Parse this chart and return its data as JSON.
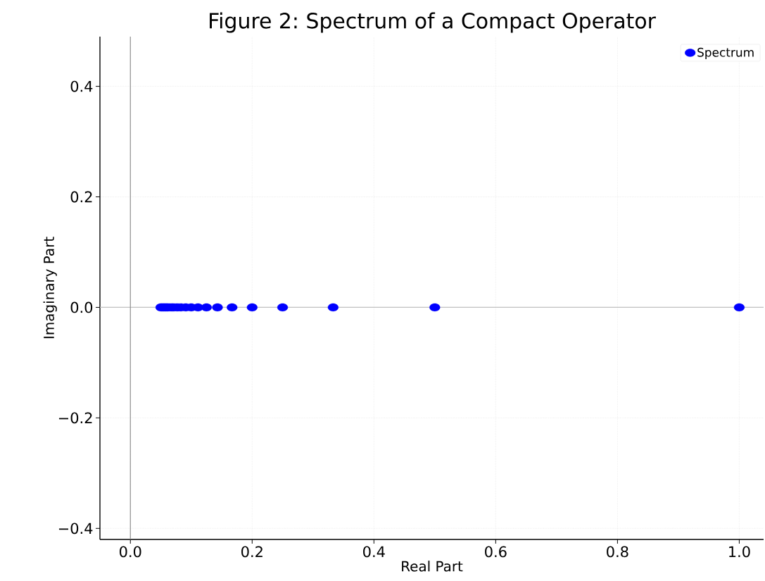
{
  "chart_data": {
    "type": "scatter",
    "title": "Figure 2: Spectrum of a Compact Operator",
    "xlabel": "Real Part",
    "ylabel": "Imaginary Part",
    "series": [
      {
        "name": "Spectrum",
        "color": "#0000ff",
        "x": [
          1.0,
          0.5,
          0.333,
          0.25,
          0.2,
          0.167,
          0.143,
          0.125,
          0.111,
          0.1,
          0.091,
          0.083,
          0.077,
          0.071,
          0.067,
          0.062,
          0.059,
          0.056,
          0.053,
          0.05
        ],
        "values": [
          0,
          0,
          0,
          0,
          0,
          0,
          0,
          0,
          0,
          0,
          0,
          0,
          0,
          0,
          0,
          0,
          0,
          0,
          0,
          0
        ]
      }
    ],
    "xlim": [
      -0.05,
      1.04
    ],
    "ylim": [
      -0.42,
      0.49
    ],
    "xticks": [
      {
        "value": 0,
        "label": "0.0"
      },
      {
        "value": 0.2,
        "label": "0.2"
      },
      {
        "value": 0.4,
        "label": "0.4"
      },
      {
        "value": 0.6,
        "label": "0.6"
      },
      {
        "value": 0.8,
        "label": "0.8"
      },
      {
        "value": 1.0,
        "label": "1.0"
      }
    ],
    "yticks": [
      {
        "value": -0.4,
        "label": "−0.4"
      },
      {
        "value": -0.2,
        "label": "−0.2"
      },
      {
        "value": 0,
        "label": "0.0"
      },
      {
        "value": 0.2,
        "label": "0.2"
      },
      {
        "value": 0.4,
        "label": "0.4"
      }
    ],
    "ref_lines": [
      {
        "axis": "y",
        "value": 0,
        "color": "#c0c0c0"
      },
      {
        "axis": "x",
        "value": 0,
        "color": "#909090"
      }
    ],
    "grid": true,
    "legend": "top right",
    "marker": "circle"
  }
}
